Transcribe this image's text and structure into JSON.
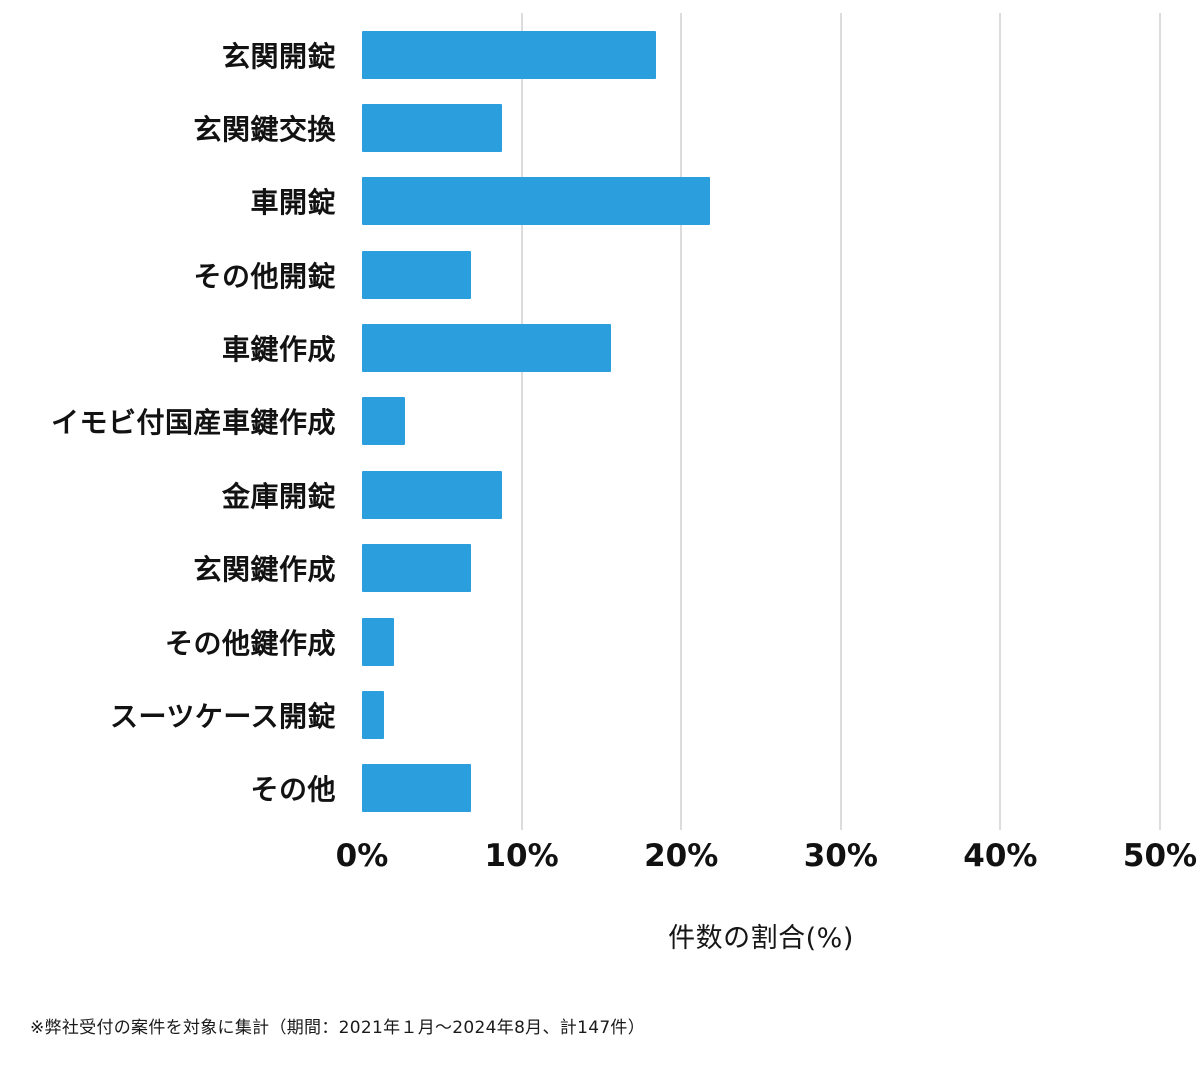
{
  "chart_data": {
    "type": "bar",
    "orientation": "horizontal",
    "title": "",
    "xlabel": "件数の割合(%)",
    "ylabel": "",
    "categories": [
      "玄関開錠",
      "玄関鍵交換",
      "車開錠",
      "その他開錠",
      "車鍵作成",
      "イモビ付国産車鍵作成",
      "金庫開錠",
      "玄関鍵作成",
      "その他鍵作成",
      "スーツケース開錠",
      "その他"
    ],
    "values": [
      18.4,
      8.8,
      21.8,
      6.8,
      15.6,
      2.7,
      8.8,
      6.8,
      2.0,
      1.4,
      6.8
    ],
    "xlim": [
      0,
      50
    ],
    "xticks": [
      0,
      10,
      20,
      30,
      40,
      50
    ],
    "xtick_labels": [
      "0%",
      "10%",
      "20%",
      "30%",
      "40%",
      "50%"
    ],
    "grid": "vertical",
    "legend": "none",
    "bar_color": "#2B9EDD"
  },
  "footnote": "※弊社受付の案件を対象に集計（期間：2021年１月～2024年8月、計147件）",
  "colors": {
    "bar": "#2B9EDD",
    "gridline": "#dcdcdc",
    "text": "#111111",
    "background": "#ffffff"
  }
}
